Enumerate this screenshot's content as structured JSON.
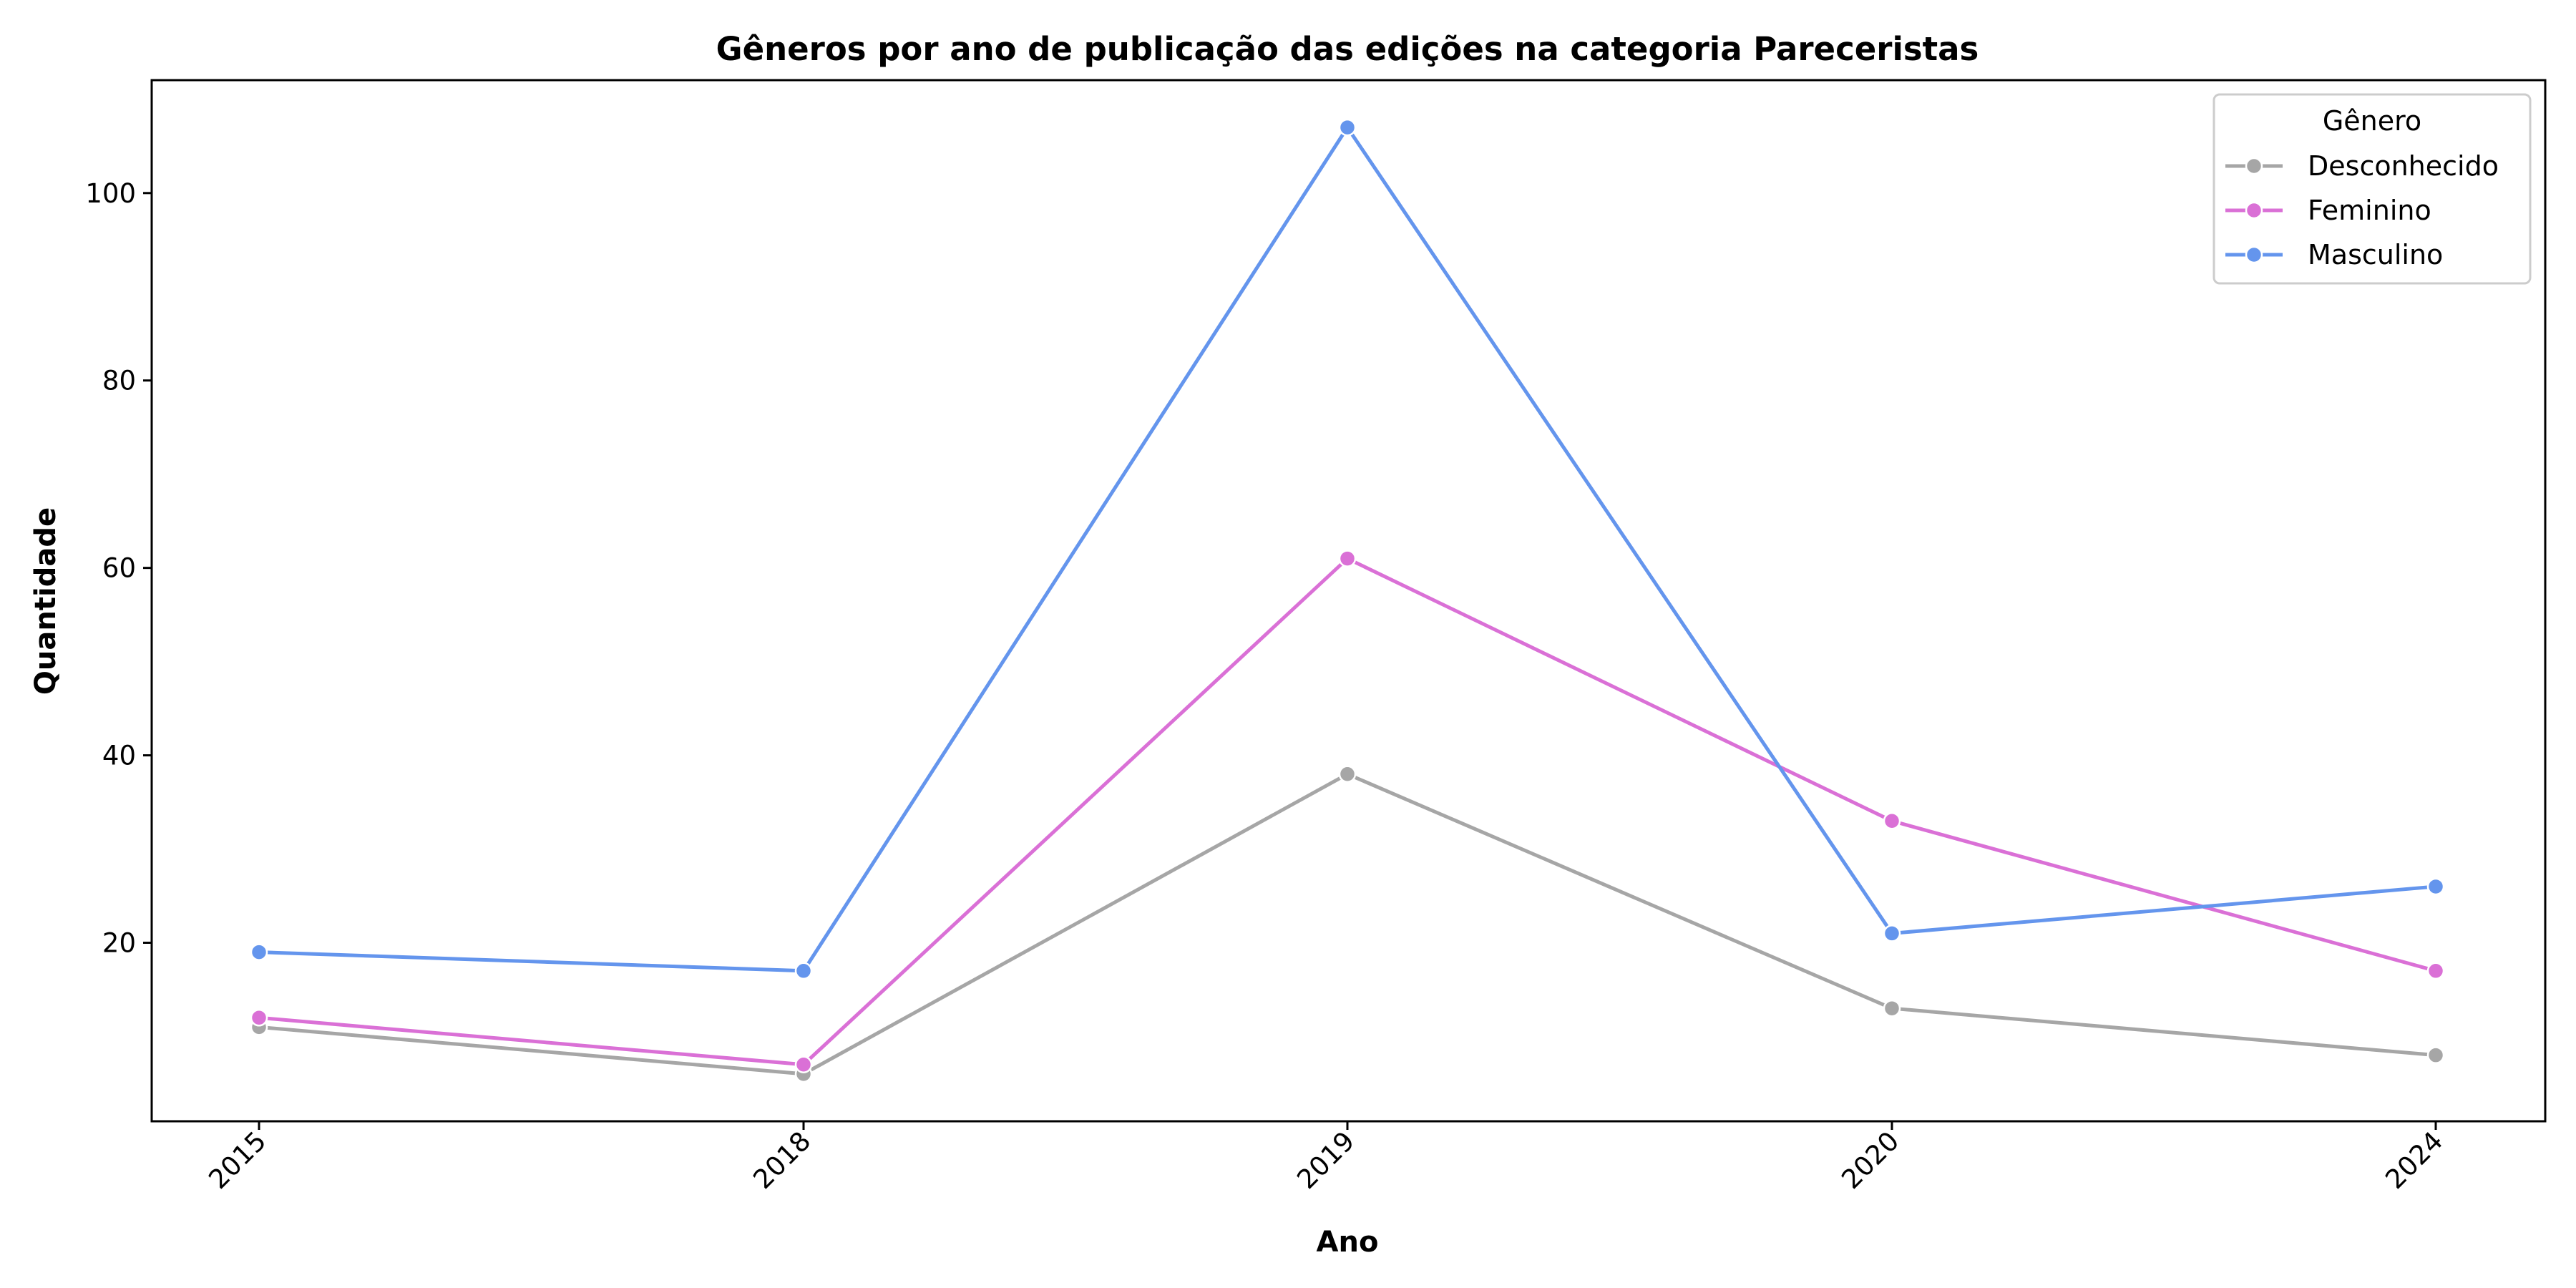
{
  "chart_data": {
    "type": "line",
    "title": "Gêneros por ano de publicação das edições na categoria Pareceristas",
    "xlabel": "Ano",
    "ylabel": "Quantidade",
    "categories": [
      "2015",
      "2018",
      "2019",
      "2020",
      "2024"
    ],
    "ylim": [
      0.95,
      112.05
    ],
    "yticks": [
      20,
      40,
      60,
      80,
      100
    ],
    "grid": false,
    "legend": {
      "title": "Gênero",
      "placement": "top-right"
    },
    "series": [
      {
        "name": "Desconhecido",
        "color": "#a6a6a6",
        "values": [
          11,
          6,
          38,
          13,
          8
        ]
      },
      {
        "name": "Feminino",
        "color": "#da70d6",
        "values": [
          12,
          7,
          61,
          33,
          17
        ]
      },
      {
        "name": "Masculino",
        "color": "#6495ed",
        "values": [
          19,
          17,
          107,
          21,
          26
        ]
      }
    ]
  }
}
